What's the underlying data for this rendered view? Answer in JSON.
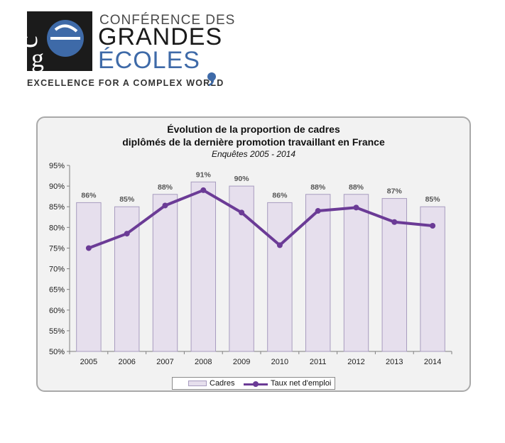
{
  "header": {
    "logo_line1": "CONFÉRENCE DES",
    "logo_line2": "GRANDES",
    "logo_line3": "ÉCOLES",
    "tagline": "EXCELLENCE FOR A COMPLEX WORLD",
    "logo_monogram": "cge"
  },
  "colors": {
    "bar_fill": "#e6dfed",
    "bar_stroke": "#a89cbf",
    "line": "#6b3b96",
    "panel_bg": "#f2f2f2",
    "logo_blue": "#3e6aa8"
  },
  "chart_data": {
    "type": "bar",
    "title_line1": "Évolution de la proportion de cadres",
    "title_line2": "diplômés de la dernière promotion travaillant en France",
    "subtitle": "Enquêtes  2005 - 2014",
    "categories": [
      "2005",
      "2006",
      "2007",
      "2008",
      "2009",
      "2010",
      "2011",
      "2012",
      "2013",
      "2014"
    ],
    "series": [
      {
        "name": "Cadres",
        "type": "bar",
        "values": [
          86,
          85,
          88,
          91,
          90,
          86,
          88,
          88,
          87,
          85
        ],
        "labels": [
          "86%",
          "85%",
          "88%",
          "91%",
          "90%",
          "86%",
          "88%",
          "88%",
          "87%",
          "85%"
        ]
      },
      {
        "name": "Taux net d'emploi",
        "type": "line",
        "values": [
          75,
          78.5,
          85.3,
          89,
          83.6,
          75.7,
          84,
          84.8,
          81.3,
          80.4
        ]
      }
    ],
    "ylim": [
      50,
      95
    ],
    "yticks": [
      "50%",
      "55%",
      "60%",
      "65%",
      "70%",
      "75%",
      "80%",
      "85%",
      "90%",
      "95%"
    ],
    "grid": false,
    "legend_position": "bottom"
  }
}
